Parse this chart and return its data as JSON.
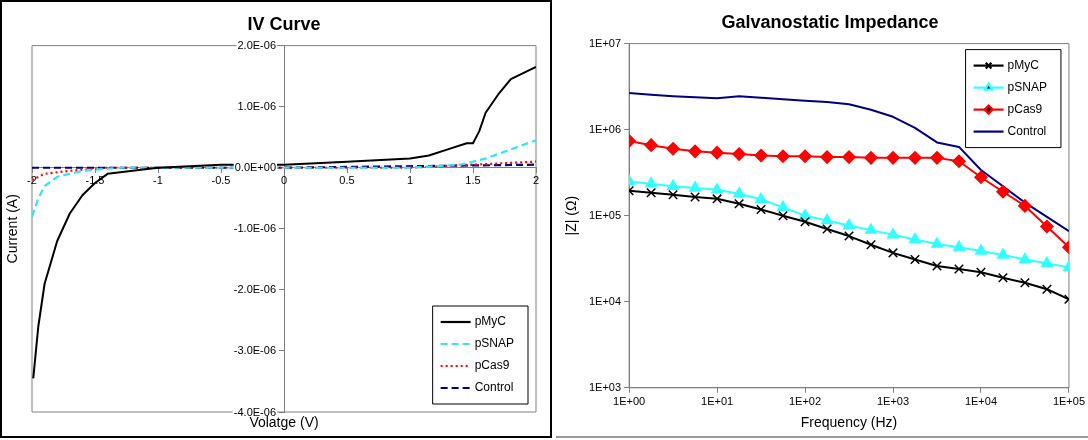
{
  "chart_data": [
    {
      "type": "line",
      "title": "IV Curve",
      "xlabel": "Volatge (V)",
      "ylabel": "Current (A)",
      "xlim": [
        -2,
        2
      ],
      "xticks": [
        -2,
        -1.5,
        -1,
        -0.5,
        0,
        0.5,
        1,
        1.5,
        2
      ],
      "ylim": [
        -4e-06,
        2e-06
      ],
      "yticks": [
        {
          "value": -4e-06,
          "label": "-4.0E-06"
        },
        {
          "value": -3e-06,
          "label": "-3.0E-06"
        },
        {
          "value": -2e-06,
          "label": "-2.0E-06"
        },
        {
          "value": -1e-06,
          "label": "-1.0E-06"
        },
        {
          "value": 0,
          "label": "0.0E+00"
        },
        {
          "value": 1e-06,
          "label": "1.0E-06"
        },
        {
          "value": 2e-06,
          "label": "2.0E-06"
        }
      ],
      "grid": false,
      "legend": "bottom right",
      "marker": "none",
      "series": [
        {
          "name": "pMyC",
          "color": "#000000",
          "line_style": "solid",
          "x": [
            -1.99,
            -1.95,
            -1.9,
            -1.8,
            -1.7,
            -1.6,
            -1.5,
            -1.4,
            -1.2,
            -1,
            -0.5,
            0,
            0.5,
            1,
            1.15,
            1.3,
            1.45,
            1.5,
            1.55,
            1.6,
            1.7,
            1.8,
            2
          ],
          "values": [
            -3.45e-06,
            -2.6e-06,
            -1.9e-06,
            -1.2e-06,
            -7.5e-07,
            -4.5e-07,
            -2.5e-07,
            -1e-07,
            -5e-08,
            0,
            5e-08,
            5e-08,
            1e-07,
            1.5e-07,
            2e-07,
            3e-07,
            4e-07,
            4e-07,
            6e-07,
            9e-07,
            1.2e-06,
            1.45e-06,
            1.65e-06
          ]
        },
        {
          "name": "pSNAP",
          "color": "#33e6f0",
          "line_style": "dashed",
          "x": [
            -2,
            -1.95,
            -1.9,
            -1.8,
            -1.6,
            -1.3,
            -1,
            0,
            1,
            1.4,
            1.6,
            1.8,
            2
          ],
          "values": [
            -8e-07,
            -5e-07,
            -3e-07,
            -1.5e-07,
            -5e-08,
            0,
            0,
            0,
            0,
            5e-08,
            1.5e-07,
            3e-07,
            4.5e-07
          ]
        },
        {
          "name": "pCas9",
          "color": "#ff0000",
          "line_style": "dotted",
          "x": [
            -2,
            -1.9,
            -1.7,
            -1.4,
            -1,
            0,
            1,
            1.5,
            2
          ],
          "values": [
            -2e-07,
            -1e-07,
            -5e-08,
            0,
            0,
            0,
            0,
            5e-08,
            1e-07
          ]
        },
        {
          "name": "Control",
          "color": "#000080",
          "line_style": "dashed",
          "x": [
            -2,
            0,
            2
          ],
          "values": [
            0,
            0,
            5e-08
          ]
        }
      ]
    },
    {
      "type": "line",
      "title": "Galvanostatic Impedance",
      "xlabel": "Frequency (Hz)",
      "ylabel": "|Z| (Ω)",
      "log": "xy",
      "xlim": [
        1,
        100000
      ],
      "xticks": [
        {
          "value": 1,
          "label": "1E+00"
        },
        {
          "value": 10,
          "label": "1E+01"
        },
        {
          "value": 100,
          "label": "1E+02"
        },
        {
          "value": 1000,
          "label": "1E+03"
        },
        {
          "value": 10000,
          "label": "1E+04"
        },
        {
          "value": 100000,
          "label": "1E+05"
        }
      ],
      "ylim": [
        1000,
        10000000
      ],
      "yticks": [
        {
          "value": 1000,
          "label": "1E+03"
        },
        {
          "value": 10000,
          "label": "1E+04"
        },
        {
          "value": 100000,
          "label": "1E+05"
        },
        {
          "value": 1000000,
          "label": "1E+06"
        },
        {
          "value": 10000000,
          "label": "1E+07"
        }
      ],
      "grid": false,
      "legend": "top right",
      "x": [
        1,
        1.78,
        3.16,
        5.62,
        10,
        17.8,
        31.6,
        56.2,
        100,
        178,
        316,
        562,
        1000,
        1778,
        3162,
        5623,
        10000,
        17783,
        31623,
        56234,
        100000
      ],
      "series": [
        {
          "name": "pMyC",
          "color": "#000000",
          "marker": "cross",
          "values": [
            195000,
            185000,
            175000,
            165000,
            157000,
            138000,
            118000,
            100000,
            85000,
            70000,
            58000,
            46000,
            37000,
            31000,
            26000,
            24000,
            22000,
            19000,
            16600,
            14000,
            10700
          ]
        },
        {
          "name": "pSNAP",
          "color": "#33ffff",
          "marker": "triangle",
          "values": [
            250000,
            235000,
            220000,
            210000,
            200000,
            180000,
            155000,
            125000,
            100000,
            88000,
            77000,
            68000,
            60000,
            53000,
            47000,
            43000,
            39000,
            35000,
            31000,
            28000,
            25000
          ]
        },
        {
          "name": "pCas9",
          "color": "#ff0000",
          "marker": "diamond",
          "values": [
            740000,
            660000,
            600000,
            560000,
            540000,
            520000,
            500000,
            490000,
            490000,
            480000,
            480000,
            470000,
            470000,
            470000,
            470000,
            430000,
            280000,
            190000,
            130000,
            75000,
            43000
          ]
        },
        {
          "name": "Control",
          "color": "#000080",
          "marker": "none",
          "values": [
            2670000,
            2550000,
            2450000,
            2380000,
            2320000,
            2450000,
            2350000,
            2250000,
            2170000,
            2100000,
            1970000,
            1700000,
            1410000,
            1050000,
            710000,
            630000,
            340000,
            220000,
            142000,
            97000,
            66000
          ]
        }
      ]
    }
  ]
}
